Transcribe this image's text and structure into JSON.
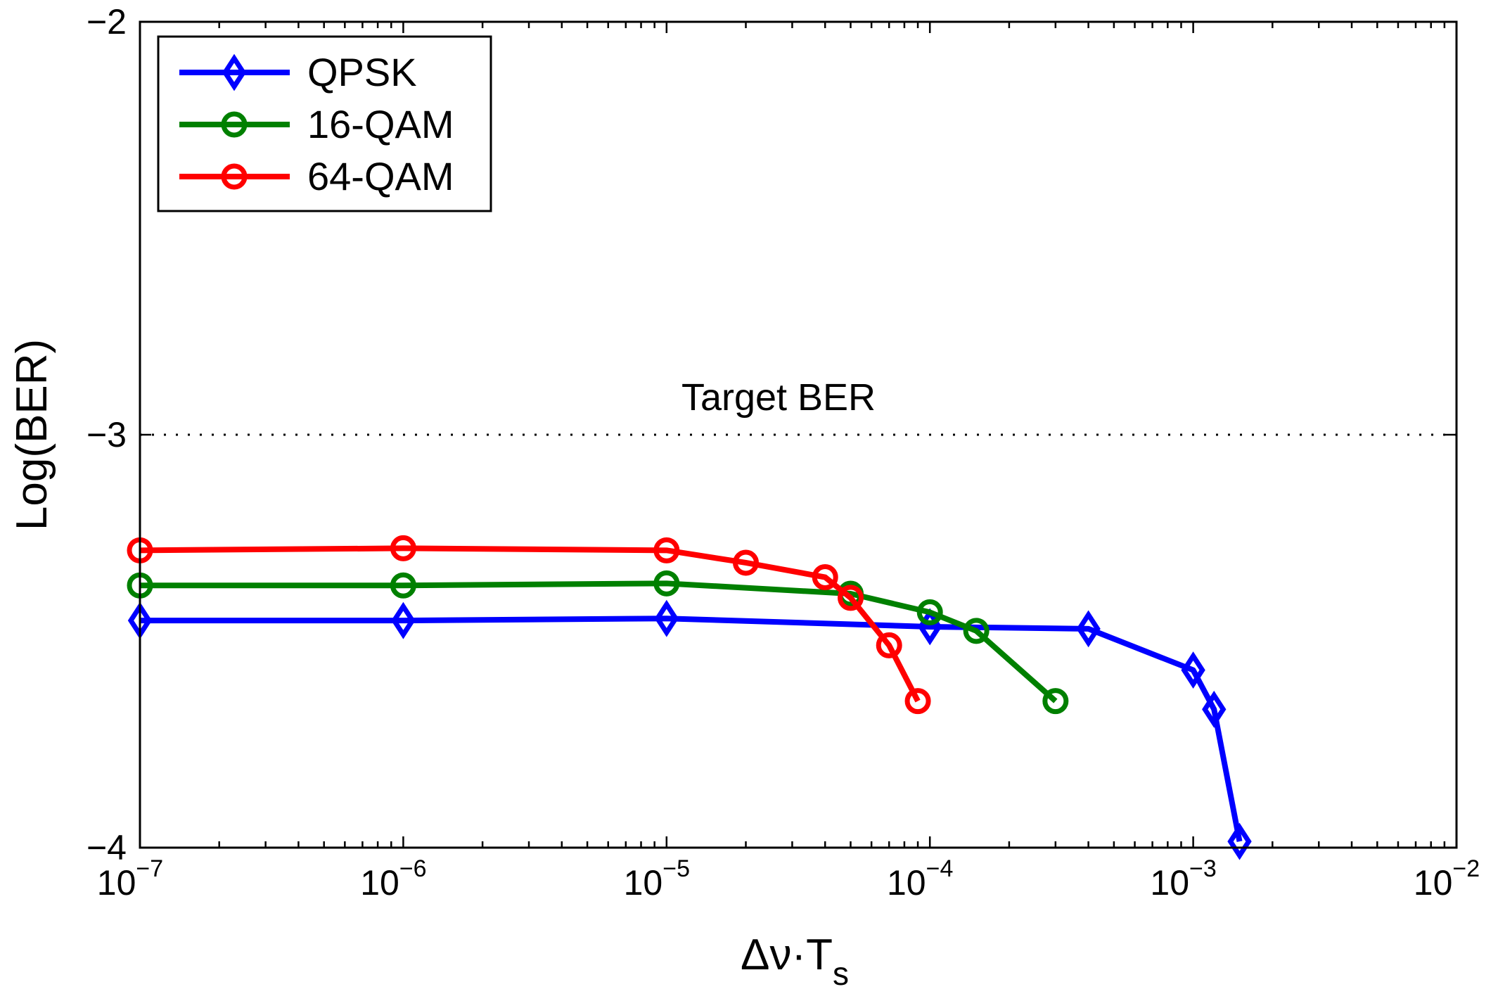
{
  "chart_data": {
    "type": "line",
    "title": "",
    "xlabel": "Δν·T",
    "xlabel_subscript": "s",
    "ylabel": "Log(BER)",
    "xscale": "log",
    "xlim": [
      1e-07,
      0.01
    ],
    "ylim": [
      -4,
      -2
    ],
    "xticks": [
      {
        "base": "10",
        "exp": "−7",
        "value": 1e-07
      },
      {
        "base": "10",
        "exp": "−6",
        "value": 1e-06
      },
      {
        "base": "10",
        "exp": "−5",
        "value": 1e-05
      },
      {
        "base": "10",
        "exp": "−4",
        "value": 0.0001
      },
      {
        "base": "10",
        "exp": "−3",
        "value": 0.001
      },
      {
        "base": "10",
        "exp": "−2",
        "value": 0.01
      }
    ],
    "yticks": [
      {
        "label": "−2",
        "value": -2
      },
      {
        "label": "−3",
        "value": -3
      },
      {
        "label": "−4",
        "value": -4
      }
    ],
    "legend_position": "top-left",
    "reference_line": {
      "label": "Target BER",
      "y": -3,
      "style": "dotted"
    },
    "series": [
      {
        "name": "QPSK",
        "color": "#0000ff",
        "marker": "diamond",
        "x": [
          1e-07,
          1e-06,
          1e-05,
          0.0001,
          0.0004,
          0.001,
          0.0012,
          0.0015
        ],
        "y": [
          -3.45,
          -3.45,
          -3.445,
          -3.465,
          -3.47,
          -3.57,
          -3.665,
          -3.985
        ]
      },
      {
        "name": "16-QAM",
        "color": "#008000",
        "marker": "circle",
        "x": [
          1e-07,
          1e-06,
          1e-05,
          5e-05,
          0.0001,
          0.00015,
          0.0003
        ],
        "y": [
          -3.365,
          -3.365,
          -3.36,
          -3.385,
          -3.43,
          -3.475,
          -3.645
        ]
      },
      {
        "name": "64-QAM",
        "color": "#ff0000",
        "marker": "circle",
        "x": [
          1e-07,
          1e-06,
          1e-05,
          2e-05,
          4e-05,
          5e-05,
          7e-05,
          9e-05
        ],
        "y": [
          -3.28,
          -3.275,
          -3.28,
          -3.31,
          -3.345,
          -3.395,
          -3.51,
          -3.645
        ]
      }
    ]
  }
}
